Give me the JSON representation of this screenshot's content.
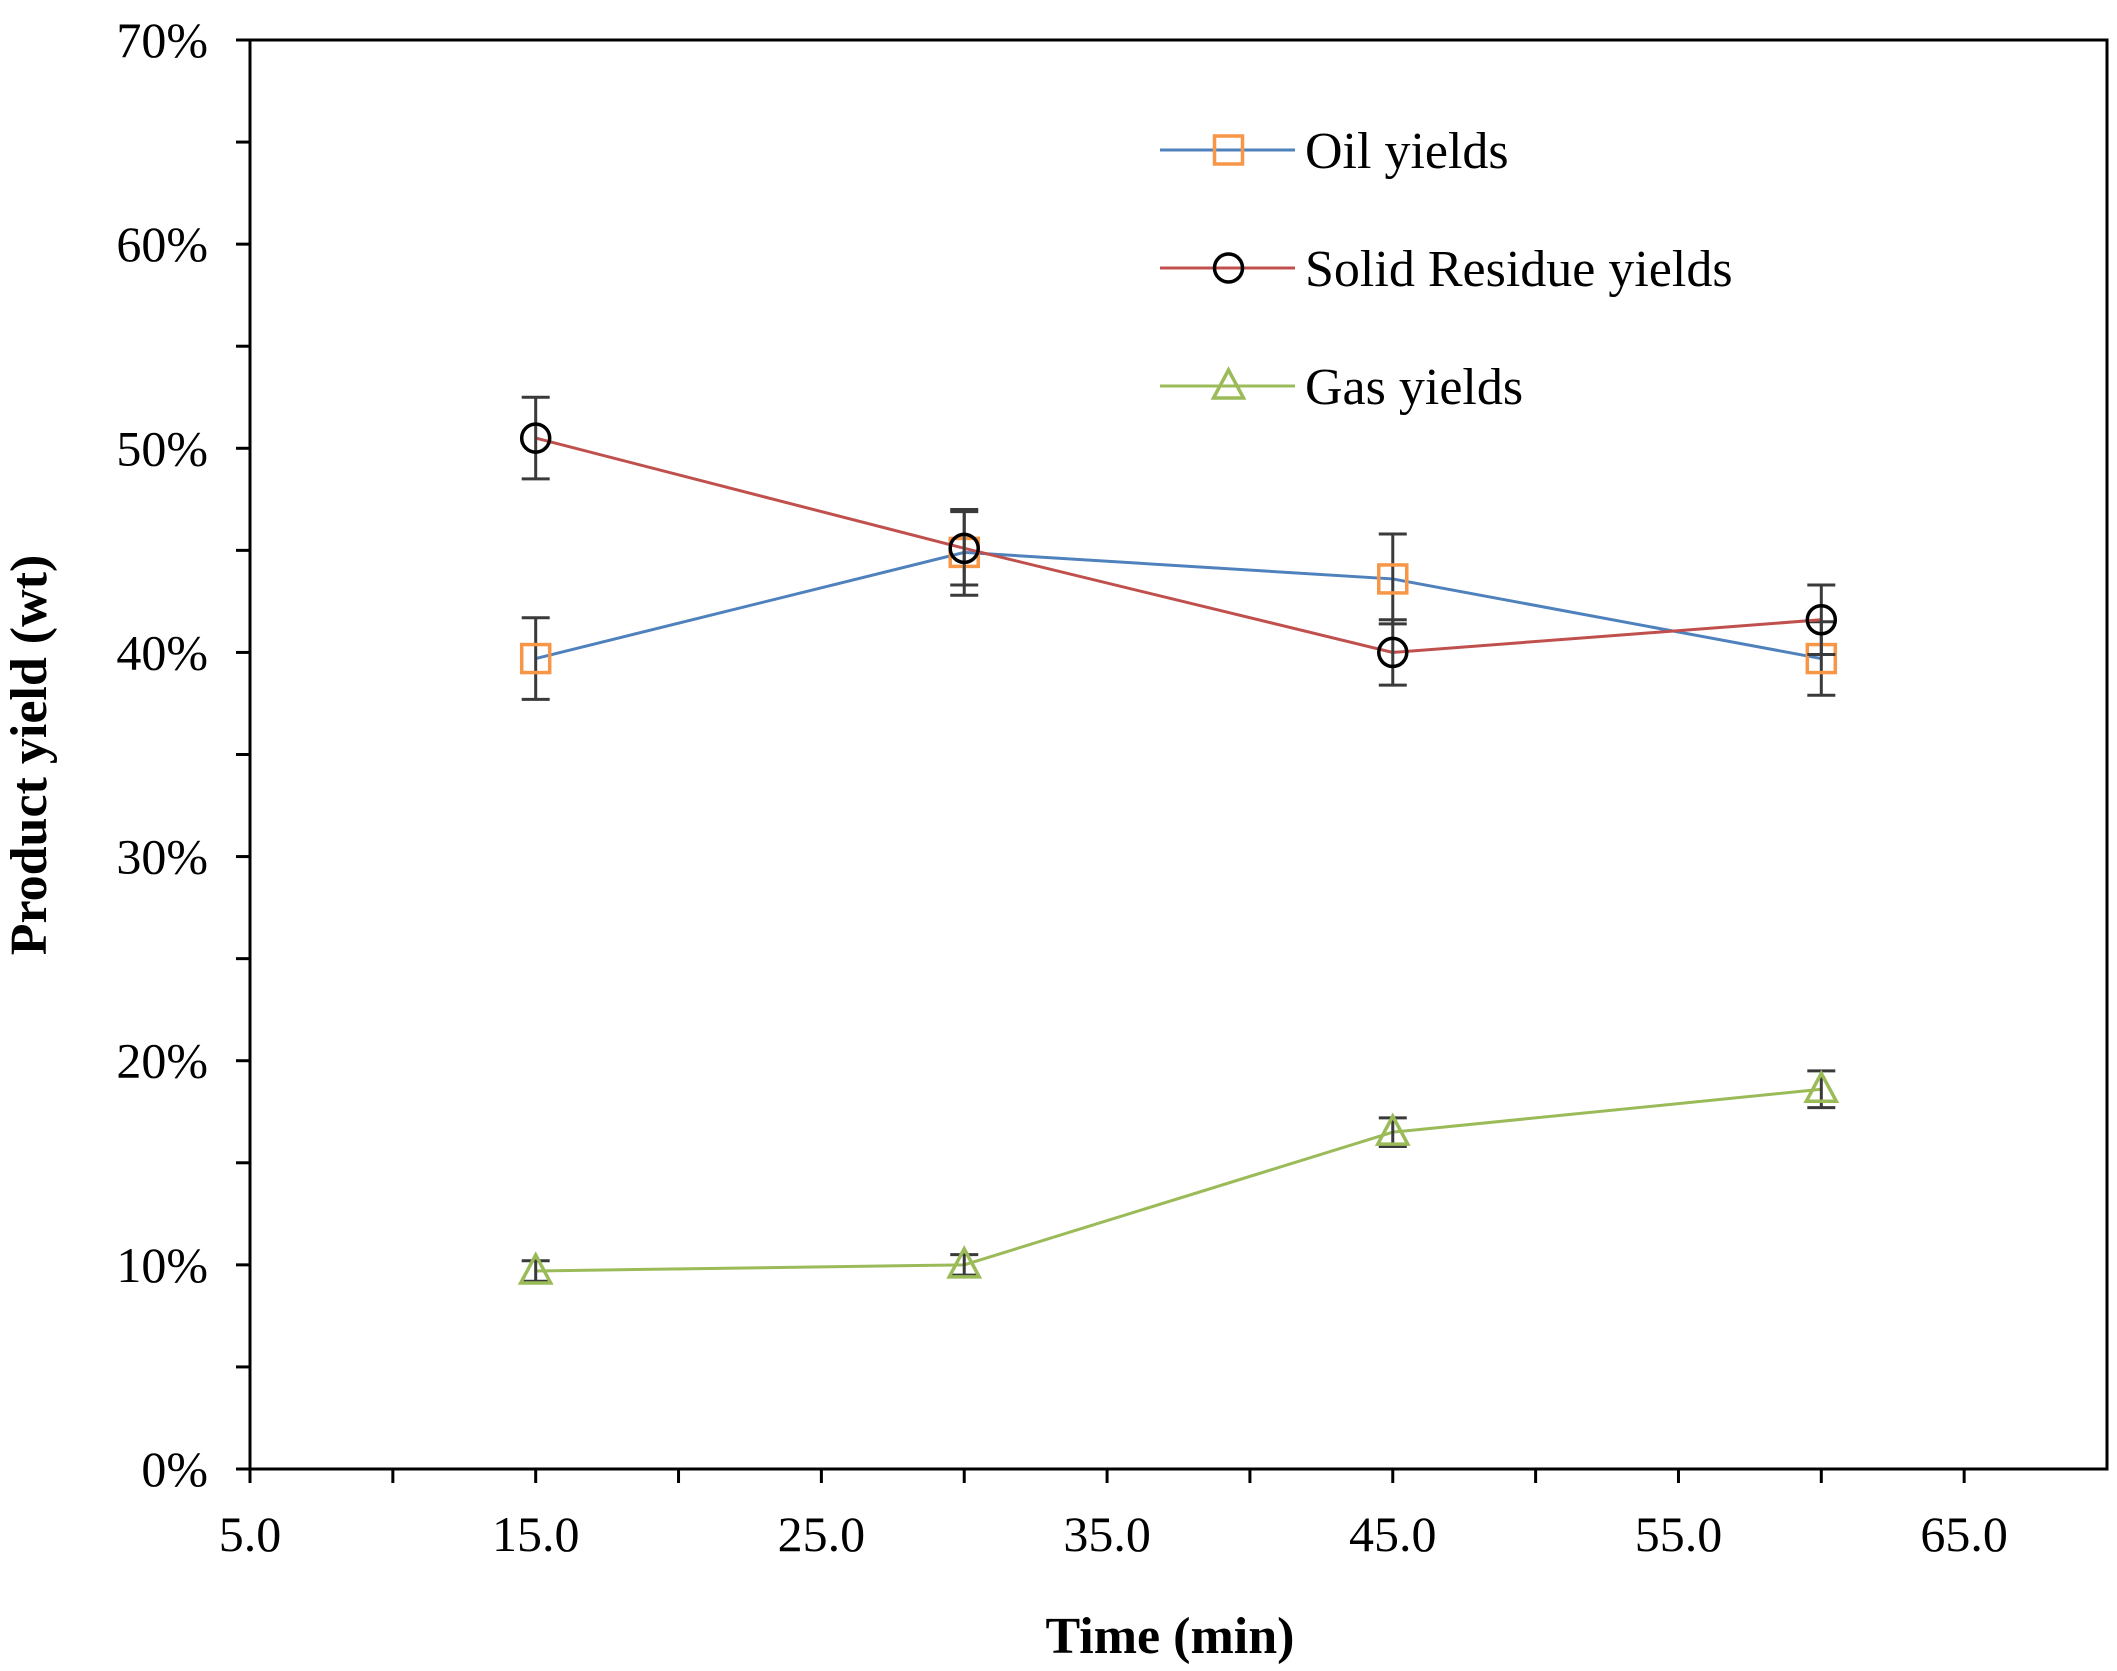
{
  "chart_data": {
    "type": "line",
    "title": "",
    "xlabel": "Time (min)",
    "ylabel": "Product yield (wt)",
    "xlim": [
      5,
      70
    ],
    "ylim": [
      0,
      0.7
    ],
    "x_ticks": [
      5,
      15,
      25,
      35,
      45,
      55,
      65
    ],
    "x_tick_labels": [
      "5.0",
      "15.0",
      "25.0",
      "35.0",
      "45.0",
      "55.0",
      "65.0"
    ],
    "x_minor_ticks": [
      10,
      20,
      30,
      40,
      50,
      60
    ],
    "y_ticks": [
      0,
      0.1,
      0.2,
      0.3,
      0.4,
      0.5,
      0.6,
      0.7
    ],
    "y_tick_labels": [
      "0%",
      "10%",
      "20%",
      "30%",
      "40%",
      "50%",
      "60%",
      "70%"
    ],
    "y_minor_ticks": [
      0.05,
      0.15,
      0.25,
      0.35,
      0.45,
      0.55,
      0.65
    ],
    "grid": false,
    "legend_position": "top-right",
    "x": [
      15,
      30,
      45,
      60
    ],
    "series": [
      {
        "name": "Oil yields",
        "values": [
          0.397,
          0.449,
          0.436,
          0.397
        ],
        "errors": [
          0.02,
          0.021,
          0.022,
          0.018
        ],
        "line_color": "#4f81bd",
        "marker": "square",
        "marker_color": "#f79646"
      },
      {
        "name": "Solid Residue yields",
        "values": [
          0.505,
          0.451,
          0.4,
          0.416
        ],
        "errors": [
          0.02,
          0.018,
          0.016,
          0.017
        ],
        "line_color": "#c0504d",
        "marker": "circle",
        "marker_color": "#000000"
      },
      {
        "name": "Gas yields",
        "values": [
          0.097,
          0.1,
          0.165,
          0.186
        ],
        "errors": [
          0.005,
          0.005,
          0.007,
          0.009
        ],
        "line_color": "#9bbb59",
        "marker": "triangle",
        "marker_color": "#9bbb59"
      }
    ]
  }
}
